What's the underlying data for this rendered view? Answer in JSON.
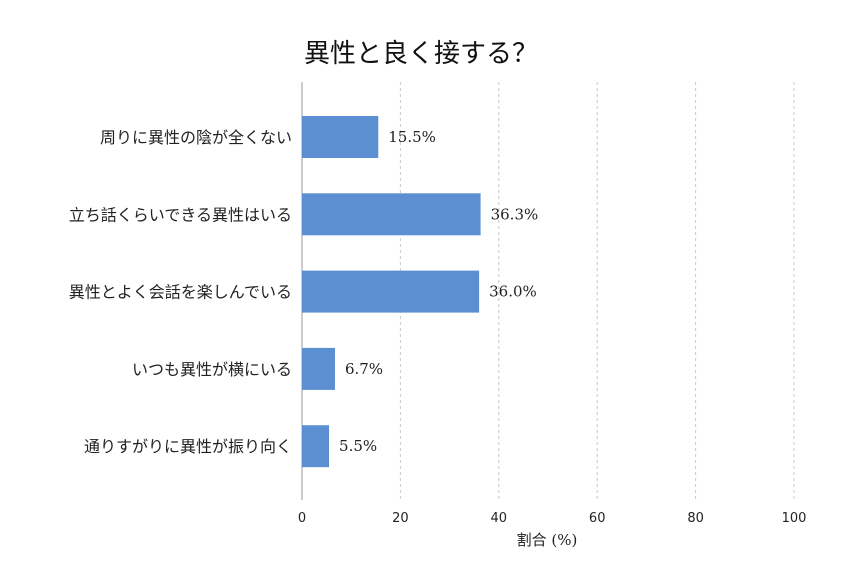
{
  "chart_data": {
    "type": "bar",
    "orientation": "horizontal",
    "title": "異性と良く接する？",
    "xlabel": "割合 (%)",
    "ylabel": "",
    "xlim": [
      0,
      100
    ],
    "xticks": [
      0,
      20,
      40,
      60,
      80,
      100
    ],
    "grid": "x-dashed",
    "bar_color": "#5b8fd1",
    "categories": [
      "周りに異性の陰が全くない",
      "立ち話くらいできる異性はいる",
      "異性とよく会話を楽しんでいる",
      "いつも異性が横にいる",
      "通りすがりに異性が振り向く"
    ],
    "values": [
      15.5,
      36.3,
      36.0,
      6.7,
      5.5
    ],
    "value_labels": [
      "15.5%",
      "36.3%",
      "36.0%",
      "6.7%",
      "5.5%"
    ]
  }
}
